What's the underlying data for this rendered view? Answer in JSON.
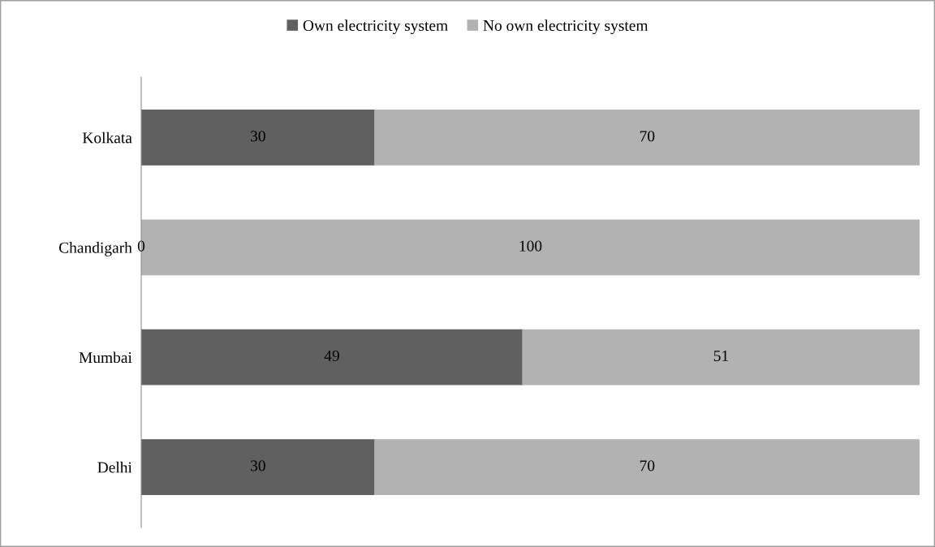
{
  "chart_data": {
    "type": "bar",
    "orientation": "horizontal",
    "stacked": true,
    "categories": [
      "Kolkata",
      "Chandigarh",
      "Mumbai",
      "Delhi"
    ],
    "series": [
      {
        "name": "Own electricity system",
        "color": "#606060",
        "values": [
          30,
          0,
          49,
          30
        ],
        "value_labels": [
          "30",
          "0",
          "49",
          "30"
        ]
      },
      {
        "name": "No own electricity system",
        "color": "#b2b2b2",
        "values": [
          70,
          100,
          51,
          70
        ],
        "value_labels": [
          "70",
          "100",
          "51",
          "70"
        ]
      }
    ],
    "legend": "top",
    "grid": false,
    "tick_labels": "y"
  }
}
